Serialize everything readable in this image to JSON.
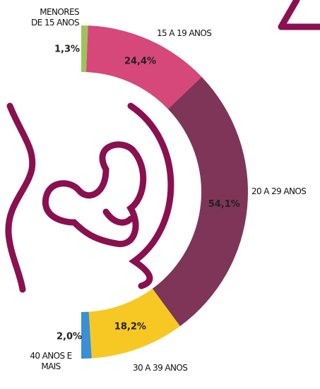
{
  "chart_data": {
    "type": "pie",
    "categories": [
      "MENORES DE 15 ANOS",
      "15 A 19 ANOS",
      "20 A 29 ANOS",
      "30 A 39 ANOS",
      "40 ANOS E MAIS"
    ],
    "values": [
      1.3,
      24.4,
      54.1,
      18.2,
      2.0
    ],
    "value_labels": [
      "1,3%",
      "24,4%",
      "54,1%",
      "18,2%",
      "2,0%"
    ],
    "colors": [
      "#9bc45a",
      "#d6487a",
      "#7e3558",
      "#f7c823",
      "#3a8fd6"
    ]
  }
}
